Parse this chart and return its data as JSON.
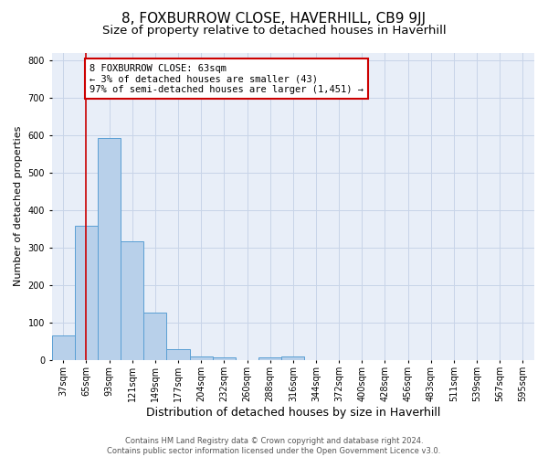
{
  "title": "8, FOXBURROW CLOSE, HAVERHILL, CB9 9JJ",
  "subtitle": "Size of property relative to detached houses in Haverhill",
  "xlabel": "Distribution of detached houses by size in Haverhill",
  "ylabel": "Number of detached properties",
  "bar_labels": [
    "37sqm",
    "65sqm",
    "93sqm",
    "121sqm",
    "149sqm",
    "177sqm",
    "204sqm",
    "232sqm",
    "260sqm",
    "288sqm",
    "316sqm",
    "344sqm",
    "372sqm",
    "400sqm",
    "428sqm",
    "456sqm",
    "483sqm",
    "511sqm",
    "539sqm",
    "567sqm",
    "595sqm"
  ],
  "bar_values": [
    65,
    358,
    593,
    318,
    127,
    30,
    10,
    8,
    0,
    8,
    10,
    0,
    0,
    0,
    0,
    0,
    0,
    0,
    0,
    0,
    0
  ],
  "bar_color": "#b8d0ea",
  "bar_edge_color": "#5a9fd4",
  "property_line_x": 1.0,
  "annotation_line1": "8 FOXBURROW CLOSE: 63sqm",
  "annotation_line2": "← 3% of detached houses are smaller (43)",
  "annotation_line3": "97% of semi-detached houses are larger (1,451) →",
  "annotation_box_color": "#cc0000",
  "ylim": [
    0,
    820
  ],
  "yticks": [
    0,
    100,
    200,
    300,
    400,
    500,
    600,
    700,
    800
  ],
  "grid_color": "#c8d4e8",
  "background_color": "#e8eef8",
  "footer_line1": "Contains HM Land Registry data © Crown copyright and database right 2024.",
  "footer_line2": "Contains public sector information licensed under the Open Government Licence v3.0.",
  "title_fontsize": 11,
  "subtitle_fontsize": 9.5,
  "ylabel_fontsize": 8,
  "xlabel_fontsize": 9,
  "tick_fontsize": 7,
  "footer_fontsize": 6
}
